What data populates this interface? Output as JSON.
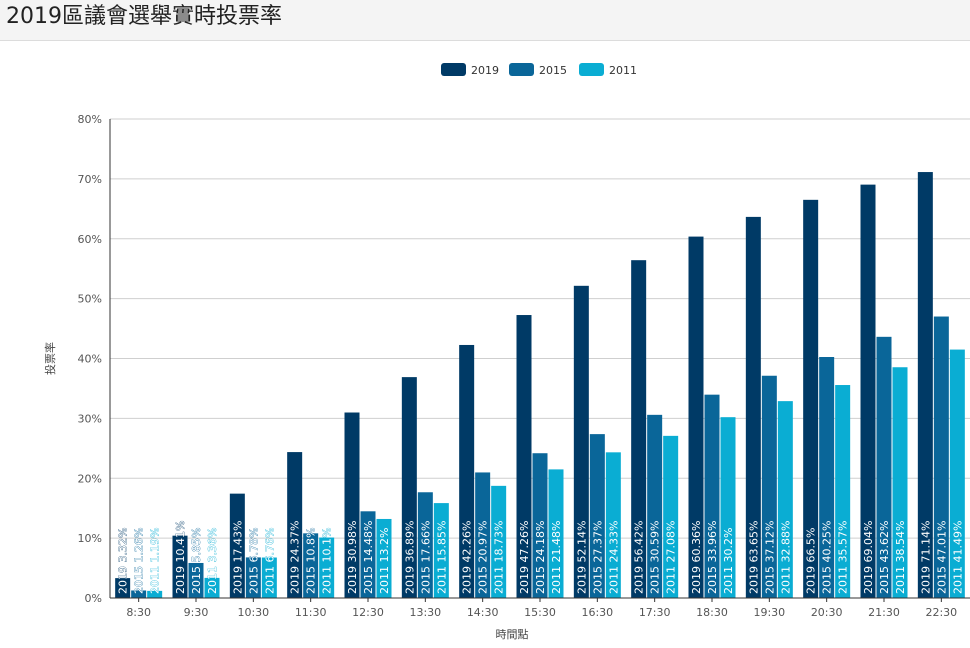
{
  "page": {
    "title": "2019區議會選舉實時投票率"
  },
  "chart_data": {
    "type": "bar",
    "title": "",
    "xlabel": "時間點",
    "ylabel": "投票率",
    "ylim": [
      0,
      80
    ],
    "yticks": [
      0,
      10,
      20,
      30,
      40,
      50,
      60,
      70,
      80
    ],
    "ytick_suffix": "%",
    "grid": true,
    "legend": "top-center",
    "categories": [
      "8:30",
      "9:30",
      "10:30",
      "11:30",
      "12:30",
      "13:30",
      "14:30",
      "15:30",
      "16:30",
      "17:30",
      "18:30",
      "19:30",
      "20:30",
      "21:30",
      "22:30"
    ],
    "series": [
      {
        "name": "2019",
        "color": "#003a66",
        "values": [
          3.32,
          10.41,
          17.43,
          24.37,
          30.98,
          36.89,
          42.26,
          47.26,
          52.14,
          56.42,
          60.36,
          63.65,
          66.5,
          69.04,
          71.14
        ]
      },
      {
        "name": "2015",
        "color": "#0a6699",
        "values": [
          1.26,
          5.85,
          6.78,
          10.8,
          14.48,
          17.66,
          20.97,
          24.18,
          27.37,
          30.59,
          33.96,
          37.12,
          40.25,
          43.62,
          47.01
        ]
      },
      {
        "name": "2011",
        "color": "#0aadd3",
        "values": [
          1.19,
          3.36,
          6.76,
          10.1,
          13.2,
          15.85,
          18.73,
          21.48,
          24.33,
          27.08,
          30.2,
          32.88,
          35.57,
          38.54,
          41.49
        ]
      }
    ]
  }
}
